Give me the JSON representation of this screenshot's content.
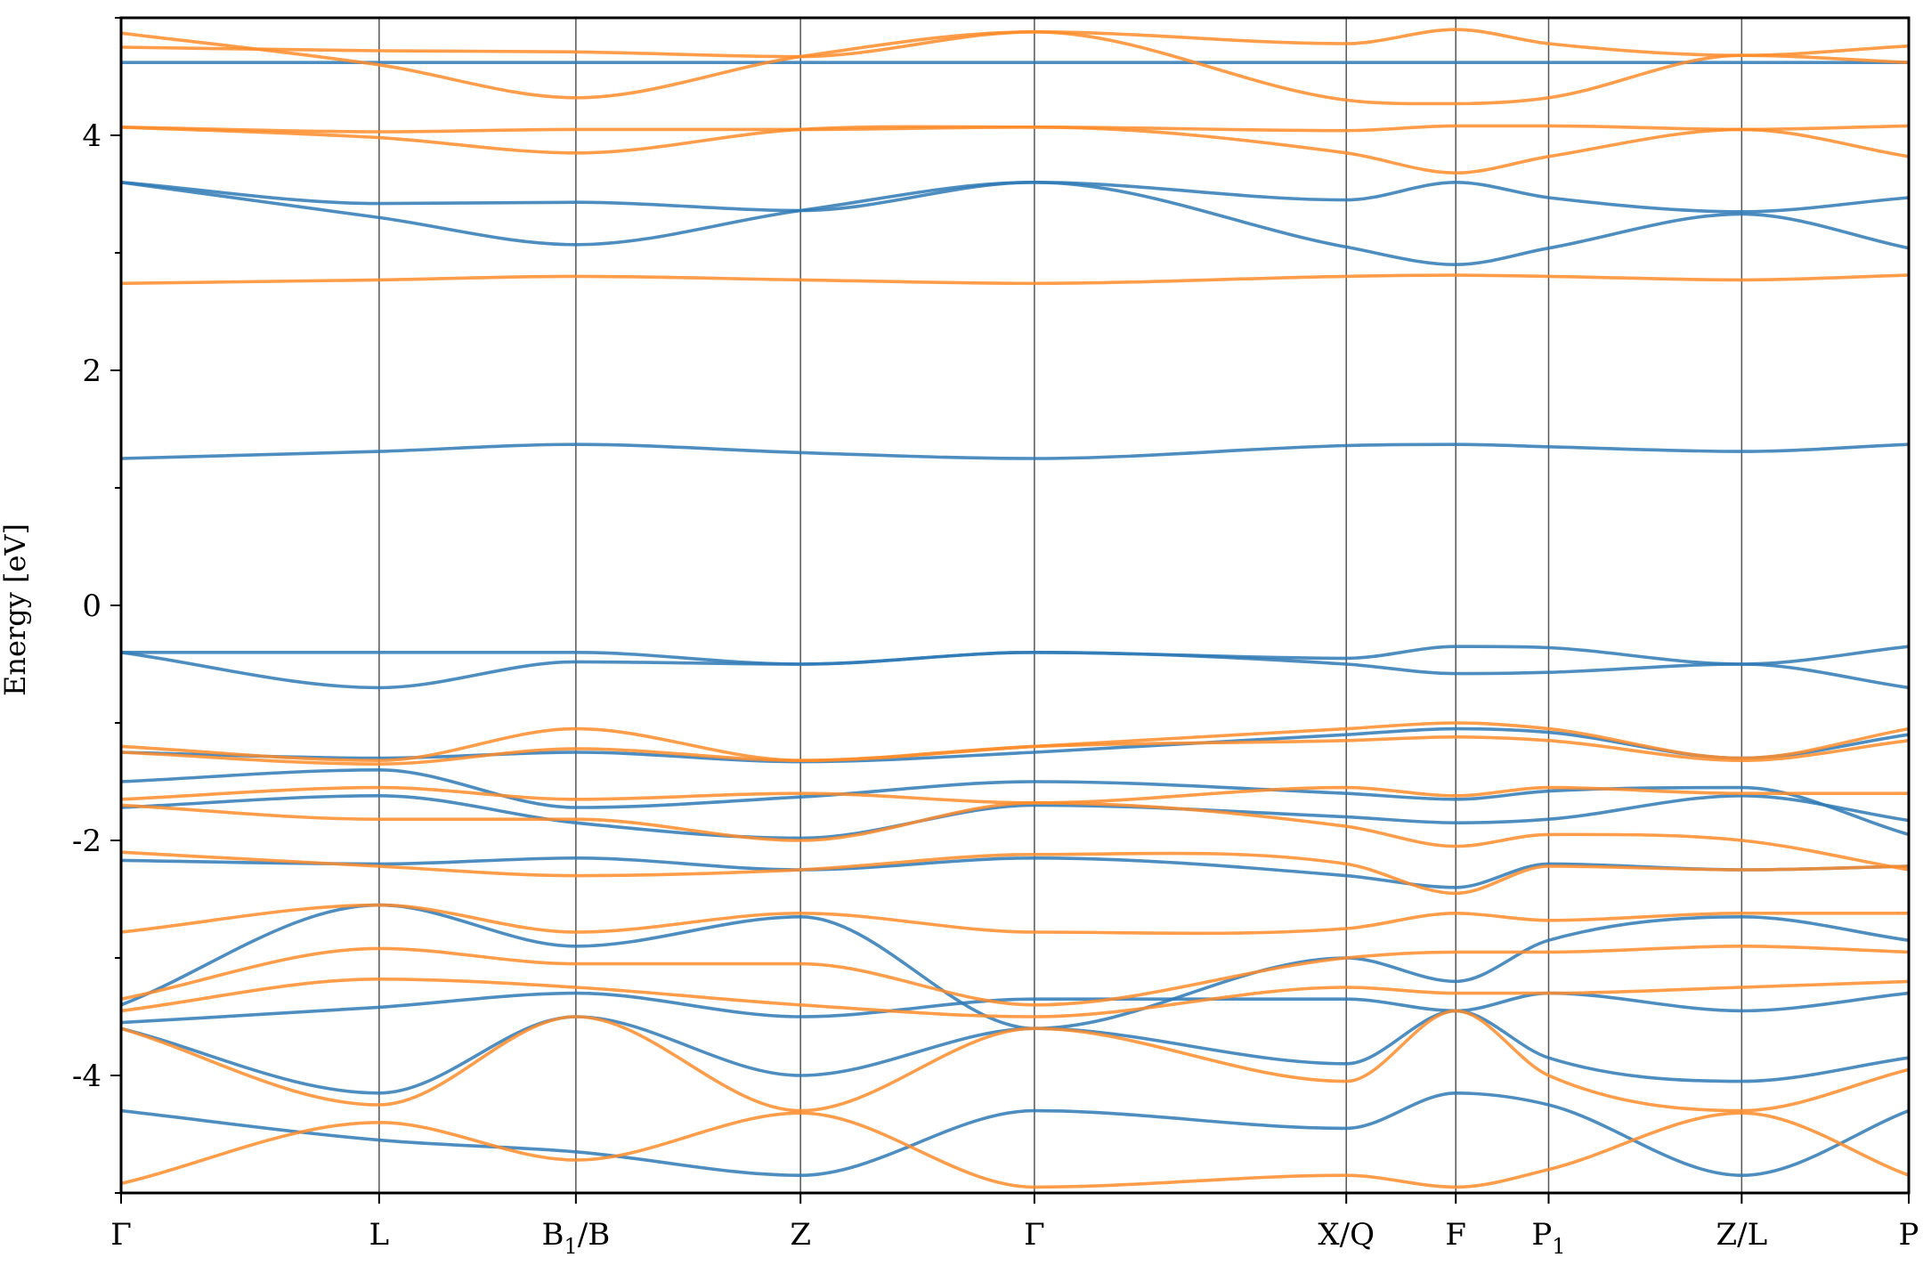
{
  "chart_data": {
    "type": "line",
    "title": "",
    "xlabel": "",
    "ylabel": "Energy [eV]",
    "ylim": [
      -5,
      5
    ],
    "yticks": [
      {
        "value": 4,
        "label": "4"
      },
      {
        "value": 2,
        "label": "2"
      },
      {
        "value": 0,
        "label": "0"
      },
      {
        "value": -2,
        "label": "-2"
      },
      {
        "value": -4,
        "label": "-4"
      }
    ],
    "xlim": [
      0,
      9.63
    ],
    "kpoint_ticks": [
      {
        "x": 0.0,
        "label": "Γ",
        "sub": "",
        "after": ""
      },
      {
        "x": 1.39,
        "label": "L",
        "sub": "",
        "after": ""
      },
      {
        "x": 2.45,
        "label": "B",
        "sub": "1",
        "after": "/B"
      },
      {
        "x": 3.66,
        "label": "Z",
        "sub": "",
        "after": ""
      },
      {
        "x": 4.92,
        "label": "Γ",
        "sub": "",
        "after": ""
      },
      {
        "x": 6.6,
        "label": "X/Q",
        "sub": "",
        "after": ""
      },
      {
        "x": 7.19,
        "label": "F",
        "sub": "",
        "after": ""
      },
      {
        "x": 7.69,
        "label": "P",
        "sub": "1",
        "after": ""
      },
      {
        "x": 8.73,
        "label": "Z/L",
        "sub": "",
        "after": ""
      },
      {
        "x": 9.63,
        "label": "P",
        "sub": "",
        "after": ""
      }
    ],
    "grid": "vertical lines at k-point ticks",
    "legend": "none",
    "colors": {
      "spin_up": "#2e79b5",
      "spin_down": "#ff8c2a"
    },
    "series": [
      {
        "color": "#2e79b5",
        "x": [
          0.0,
          1.39,
          2.45,
          3.66,
          4.92,
          6.6,
          7.19,
          7.69,
          8.73,
          9.63
        ],
        "y": [
          4.62,
          4.62,
          4.62,
          4.62,
          4.62,
          4.62,
          4.62,
          4.62,
          4.62,
          4.62
        ]
      },
      {
        "color": "#2e79b5",
        "x": [
          0.0,
          1.39,
          2.45,
          3.66,
          4.92,
          6.6,
          7.19,
          7.69,
          8.73,
          9.63
        ],
        "y": [
          3.6,
          3.42,
          3.43,
          3.36,
          3.6,
          3.45,
          3.6,
          3.47,
          3.35,
          3.47
        ]
      },
      {
        "color": "#2e79b5",
        "x": [
          0.0,
          1.39,
          2.45,
          3.66,
          4.92,
          6.6,
          7.19,
          7.69,
          8.73,
          9.63
        ],
        "y": [
          3.6,
          3.3,
          3.07,
          3.36,
          3.6,
          3.05,
          2.9,
          3.04,
          3.33,
          3.04
        ]
      },
      {
        "color": "#2e79b5",
        "x": [
          0.0,
          1.39,
          2.45,
          3.66,
          4.92,
          6.6,
          7.19,
          7.69,
          8.73,
          9.63
        ],
        "y": [
          1.25,
          1.31,
          1.37,
          1.3,
          1.25,
          1.36,
          1.37,
          1.35,
          1.31,
          1.37
        ]
      },
      {
        "color": "#2e79b5",
        "x": [
          0.0,
          1.39,
          2.45,
          3.66,
          4.92,
          6.6,
          7.19,
          7.69,
          8.73,
          9.63
        ],
        "y": [
          -0.4,
          -0.4,
          -0.4,
          -0.5,
          -0.4,
          -0.45,
          -0.35,
          -0.36,
          -0.5,
          -0.35
        ]
      },
      {
        "color": "#2e79b5",
        "x": [
          0.0,
          1.39,
          2.45,
          3.66,
          4.92,
          6.6,
          7.19,
          7.69,
          8.73,
          9.63
        ],
        "y": [
          -0.4,
          -0.7,
          -0.48,
          -0.5,
          -0.4,
          -0.5,
          -0.58,
          -0.57,
          -0.5,
          -0.7
        ]
      },
      {
        "color": "#2e79b5",
        "x": [
          0.0,
          1.39,
          2.45,
          3.66,
          4.92,
          6.6,
          7.19,
          7.69,
          8.73,
          9.63
        ],
        "y": [
          -1.25,
          -1.3,
          -1.25,
          -1.33,
          -1.25,
          -1.1,
          -1.05,
          -1.08,
          -1.3,
          -1.1
        ]
      },
      {
        "color": "#2e79b5",
        "x": [
          0.0,
          1.39,
          2.45,
          3.66,
          4.92,
          6.6,
          7.19,
          7.69,
          8.73,
          9.63
        ],
        "y": [
          -1.5,
          -1.4,
          -1.72,
          -1.63,
          -1.5,
          -1.6,
          -1.65,
          -1.58,
          -1.55,
          -1.95
        ]
      },
      {
        "color": "#2e79b5",
        "x": [
          0.0,
          1.39,
          2.45,
          3.66,
          4.92,
          6.6,
          7.19,
          7.69,
          8.73,
          9.63
        ],
        "y": [
          -1.72,
          -1.62,
          -1.85,
          -1.98,
          -1.7,
          -1.8,
          -1.85,
          -1.82,
          -1.62,
          -1.83
        ]
      },
      {
        "color": "#2e79b5",
        "x": [
          0.0,
          1.39,
          2.45,
          3.66,
          4.92,
          6.6,
          7.19,
          7.69,
          8.73,
          9.63
        ],
        "y": [
          -2.17,
          -2.2,
          -2.15,
          -2.25,
          -2.15,
          -2.3,
          -2.4,
          -2.2,
          -2.25,
          -2.22
        ]
      },
      {
        "color": "#2e79b5",
        "x": [
          0.0,
          1.39,
          2.45,
          3.66,
          4.92,
          6.6,
          7.19,
          7.69,
          8.73,
          9.63
        ],
        "y": [
          -3.4,
          -2.55,
          -2.9,
          -2.65,
          -3.6,
          -3.0,
          -3.2,
          -2.85,
          -2.65,
          -2.85
        ]
      },
      {
        "color": "#2e79b5",
        "x": [
          0.0,
          1.39,
          2.45,
          3.66,
          4.92,
          6.6,
          7.19,
          7.69,
          8.73,
          9.63
        ],
        "y": [
          -3.55,
          -3.42,
          -3.3,
          -3.5,
          -3.35,
          -3.35,
          -3.45,
          -3.3,
          -3.45,
          -3.3
        ]
      },
      {
        "color": "#2e79b5",
        "x": [
          0.0,
          1.39,
          2.45,
          3.66,
          4.92,
          6.6,
          7.19,
          7.69,
          8.73,
          9.63
        ],
        "y": [
          -3.6,
          -4.15,
          -3.5,
          -4.0,
          -3.6,
          -3.9,
          -3.45,
          -3.85,
          -4.05,
          -3.85
        ]
      },
      {
        "color": "#2e79b5",
        "x": [
          0.0,
          1.39,
          2.45,
          3.66,
          4.92,
          6.6,
          7.19,
          7.69,
          8.73,
          9.63
        ],
        "y": [
          -4.3,
          -4.55,
          -4.65,
          -4.85,
          -4.3,
          -4.45,
          -4.15,
          -4.25,
          -4.85,
          -4.3
        ]
      },
      {
        "color": "#ff8c2a",
        "x": [
          0.0,
          1.39,
          2.45,
          3.66,
          4.92,
          6.6,
          7.19,
          7.69,
          8.73,
          9.63
        ],
        "y": [
          4.75,
          4.72,
          4.71,
          4.67,
          4.88,
          4.78,
          4.9,
          4.78,
          4.68,
          4.76
        ]
      },
      {
        "color": "#ff8c2a",
        "x": [
          0.0,
          1.39,
          2.45,
          3.66,
          4.92,
          6.6,
          7.19,
          7.69,
          8.73,
          9.63
        ],
        "y": [
          4.87,
          4.6,
          4.32,
          4.67,
          4.88,
          4.3,
          4.27,
          4.32,
          4.68,
          4.62
        ]
      },
      {
        "color": "#ff8c2a",
        "x": [
          0.0,
          1.39,
          2.45,
          3.66,
          4.92,
          6.6,
          7.19,
          7.69,
          8.73,
          9.63
        ],
        "y": [
          4.07,
          4.03,
          4.05,
          4.05,
          4.07,
          4.04,
          4.08,
          4.08,
          4.05,
          4.08
        ]
      },
      {
        "color": "#ff8c2a",
        "x": [
          0.0,
          1.39,
          2.45,
          3.66,
          4.92,
          6.6,
          7.19,
          7.69,
          8.73,
          9.63
        ],
        "y": [
          4.07,
          3.98,
          3.85,
          4.05,
          4.07,
          3.85,
          3.68,
          3.82,
          4.05,
          3.82
        ]
      },
      {
        "color": "#ff8c2a",
        "x": [
          0.0,
          1.39,
          2.45,
          3.66,
          4.92,
          6.6,
          7.19,
          7.69,
          8.73,
          9.63
        ],
        "y": [
          2.74,
          2.77,
          2.8,
          2.77,
          2.74,
          2.8,
          2.81,
          2.8,
          2.77,
          2.81
        ]
      },
      {
        "color": "#ff8c2a",
        "x": [
          0.0,
          1.39,
          2.45,
          3.66,
          4.92,
          6.6,
          7.19,
          7.69,
          8.73,
          9.63
        ],
        "y": [
          -1.2,
          -1.32,
          -1.05,
          -1.32,
          -1.2,
          -1.05,
          -1.0,
          -1.05,
          -1.3,
          -1.05
        ]
      },
      {
        "color": "#ff8c2a",
        "x": [
          0.0,
          1.39,
          2.45,
          3.66,
          4.92,
          6.6,
          7.19,
          7.69,
          8.73,
          9.63
        ],
        "y": [
          -1.25,
          -1.35,
          -1.22,
          -1.32,
          -1.2,
          -1.15,
          -1.12,
          -1.15,
          -1.32,
          -1.15
        ]
      },
      {
        "color": "#ff8c2a",
        "x": [
          0.0,
          1.39,
          2.45,
          3.66,
          4.92,
          6.6,
          7.19,
          7.69,
          8.73,
          9.63
        ],
        "y": [
          -1.65,
          -1.55,
          -1.65,
          -1.6,
          -1.68,
          -1.55,
          -1.62,
          -1.55,
          -1.6,
          -1.6
        ]
      },
      {
        "color": "#ff8c2a",
        "x": [
          0.0,
          1.39,
          2.45,
          3.66,
          4.92,
          6.6,
          7.19,
          7.69,
          8.73,
          9.63
        ],
        "y": [
          -1.7,
          -1.82,
          -1.82,
          -2.0,
          -1.68,
          -1.88,
          -2.05,
          -1.95,
          -2.0,
          -2.25
        ]
      },
      {
        "color": "#ff8c2a",
        "x": [
          0.0,
          1.39,
          2.45,
          3.66,
          4.92,
          6.6,
          7.19,
          7.69,
          8.73,
          9.63
        ],
        "y": [
          -2.1,
          -2.22,
          -2.3,
          -2.25,
          -2.12,
          -2.2,
          -2.45,
          -2.22,
          -2.25,
          -2.22
        ]
      },
      {
        "color": "#ff8c2a",
        "x": [
          0.0,
          1.39,
          2.45,
          3.66,
          4.92,
          6.6,
          7.19,
          7.69,
          8.73,
          9.63
        ],
        "y": [
          -2.78,
          -2.55,
          -2.78,
          -2.62,
          -2.78,
          -2.75,
          -2.62,
          -2.68,
          -2.62,
          -2.62
        ]
      },
      {
        "color": "#ff8c2a",
        "x": [
          0.0,
          1.39,
          2.45,
          3.66,
          4.92,
          6.6,
          7.19,
          7.69,
          8.73,
          9.63
        ],
        "y": [
          -3.35,
          -2.92,
          -3.05,
          -3.05,
          -3.4,
          -3.0,
          -2.95,
          -2.95,
          -2.9,
          -2.95
        ]
      },
      {
        "color": "#ff8c2a",
        "x": [
          0.0,
          1.39,
          2.45,
          3.66,
          4.92,
          6.6,
          7.19,
          7.69,
          8.73,
          9.63
        ],
        "y": [
          -3.45,
          -3.18,
          -3.25,
          -3.4,
          -3.5,
          -3.25,
          -3.3,
          -3.3,
          -3.25,
          -3.2
        ]
      },
      {
        "color": "#ff8c2a",
        "x": [
          0.0,
          1.39,
          2.45,
          3.66,
          4.92,
          6.6,
          7.19,
          7.69,
          8.73,
          9.63
        ],
        "y": [
          -3.6,
          -4.25,
          -3.5,
          -4.3,
          -3.6,
          -4.05,
          -3.45,
          -4.0,
          -4.3,
          -3.95
        ]
      },
      {
        "color": "#ff8c2a",
        "x": [
          0.0,
          1.39,
          2.45,
          3.66,
          4.92,
          6.6,
          7.19,
          7.69,
          8.73,
          9.63
        ],
        "y": [
          -4.92,
          -4.4,
          -4.72,
          -4.32,
          -4.95,
          -4.85,
          -4.95,
          -4.8,
          -4.32,
          -4.85
        ]
      }
    ]
  }
}
